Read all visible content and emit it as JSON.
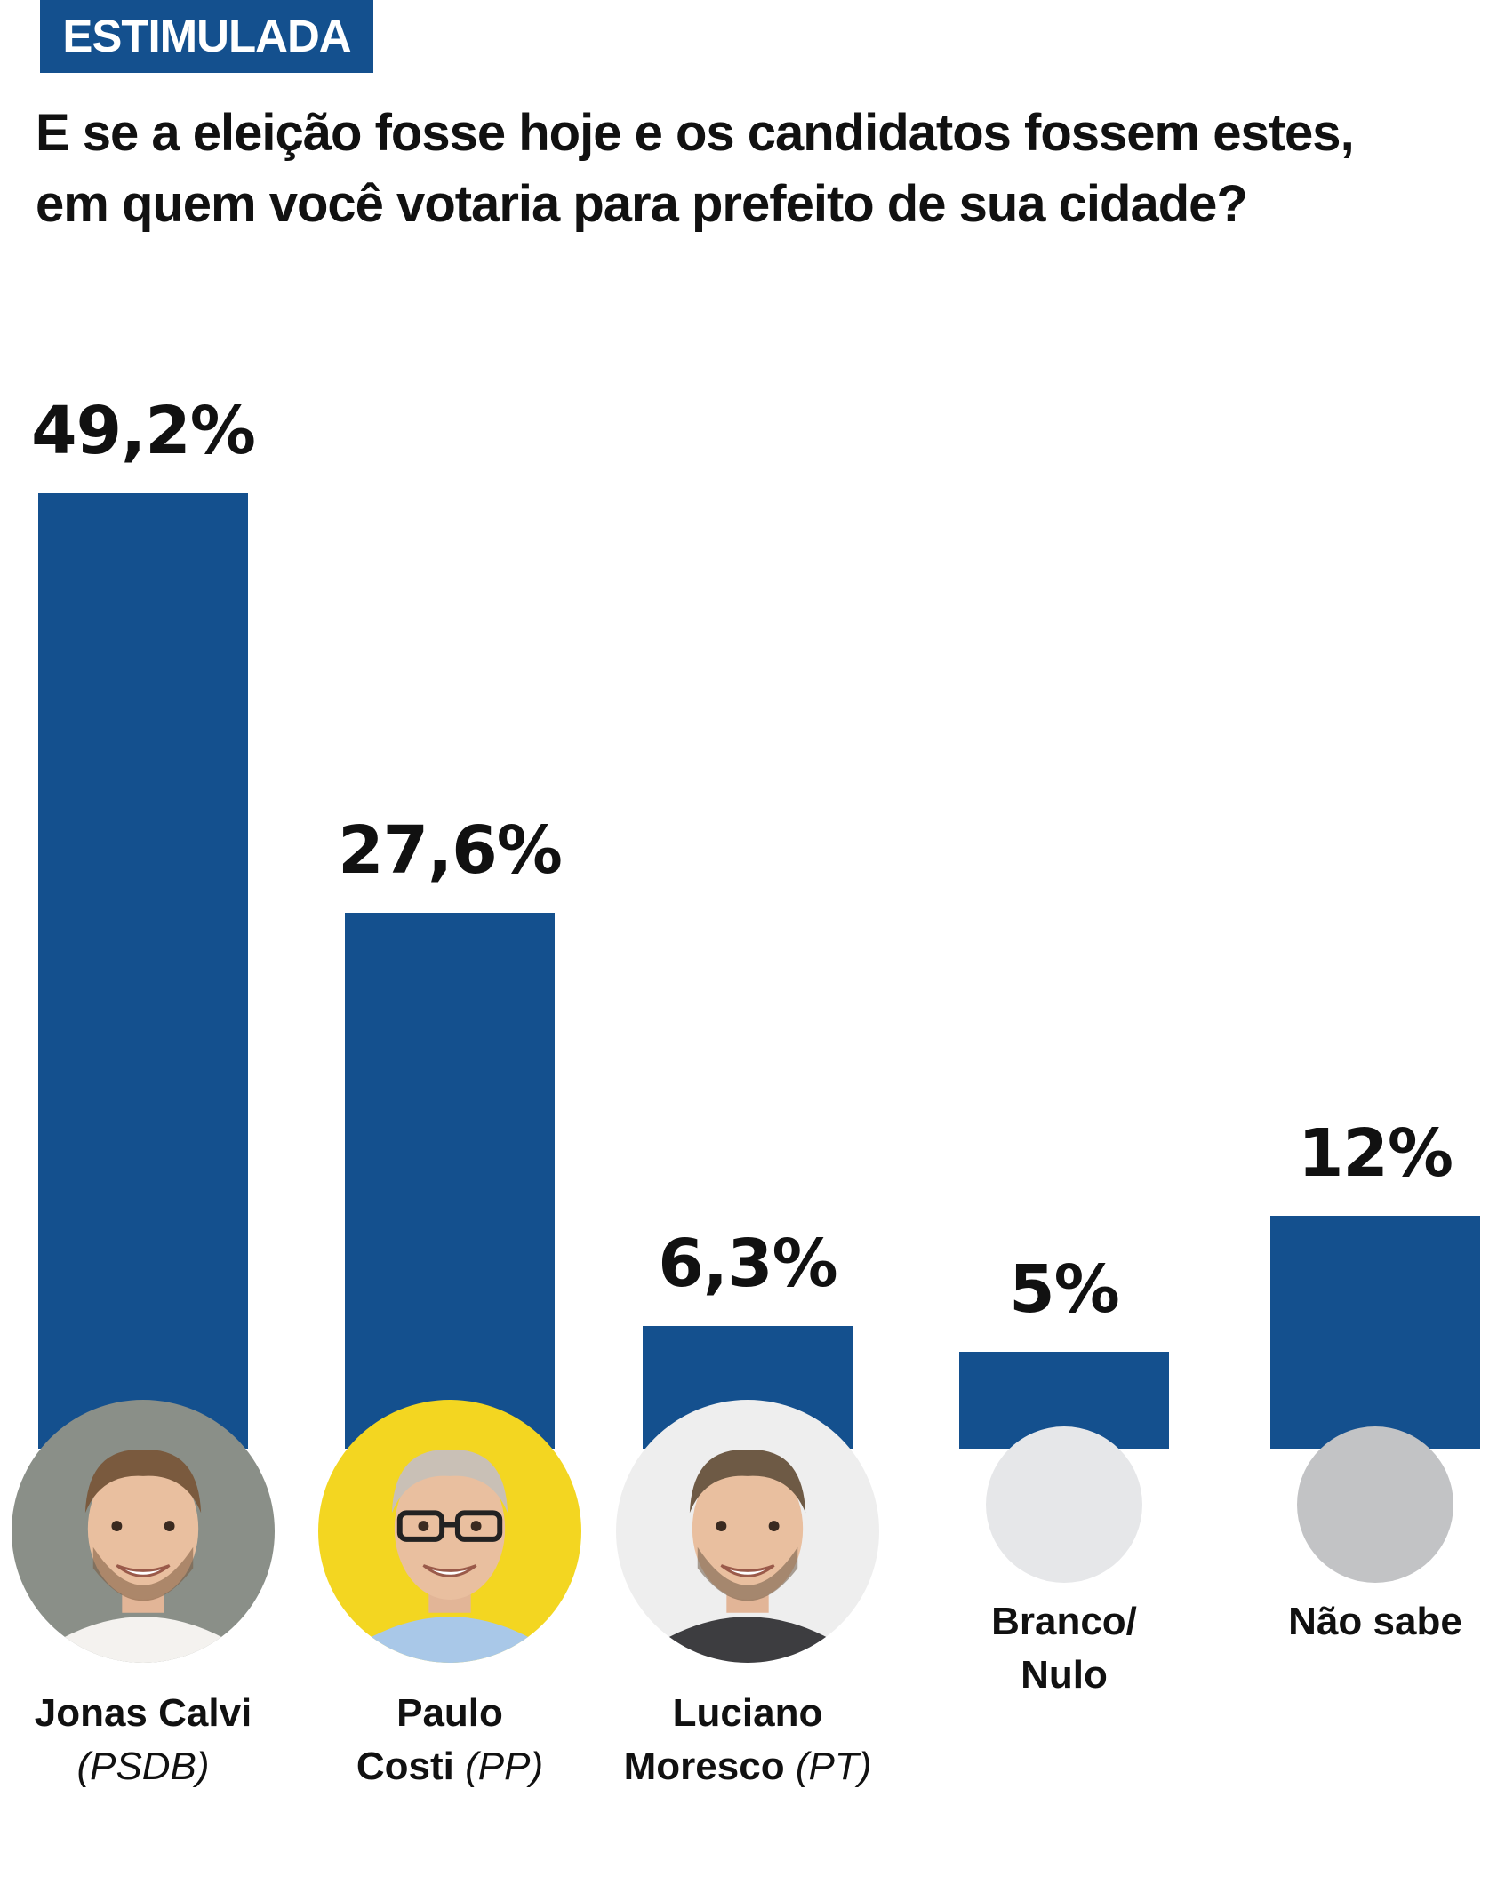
{
  "header": {
    "tag": "ESTIMULADA",
    "question_lines": [
      "E se a eleição fosse hoje e os candidatos fossem estes,",
      "em quem você votaria para prefeito de sua cidade?"
    ]
  },
  "chart_data": {
    "type": "bar",
    "title": "E se a eleição fosse hoje e os candidatos fossem estes, em quem você votaria para prefeito de sua cidade?",
    "categories": [
      "Jonas Calvi (PSDB)",
      "Paulo Costi (PP)",
      "Luciano Moresco (PT)",
      "Branco/Nulo",
      "Não sabe"
    ],
    "values": [
      49.2,
      27.6,
      6.3,
      5,
      12
    ],
    "value_labels": [
      "49,2%",
      "27,6%",
      "6,3%",
      "5%",
      "12%"
    ],
    "bar_color": "#14508e",
    "ylim": [
      0,
      50
    ],
    "grid": false,
    "legend": "none"
  },
  "candidates": [
    {
      "name_lines": [
        "Jonas Calvi"
      ],
      "party": "(PSDB)",
      "photo_icon": "candidate-photo-icon",
      "photo_bg": "#8a8f88"
    },
    {
      "name_lines": [
        "Paulo",
        "Costi"
      ],
      "party": "(PP)",
      "photo_icon": "candidate-photo-icon",
      "photo_bg": "#f3d621"
    },
    {
      "name_lines": [
        "Luciano",
        "Moresco"
      ],
      "party": "(PT)",
      "photo_icon": "candidate-photo-icon",
      "photo_bg": "#eeeeee"
    },
    {
      "name_lines": [
        "Branco/",
        "Nulo"
      ],
      "party": "",
      "placeholder_color": "#e6e7e9"
    },
    {
      "name_lines": [
        "Não sabe"
      ],
      "party": "",
      "placeholder_color": "#c2c3c5"
    }
  ]
}
